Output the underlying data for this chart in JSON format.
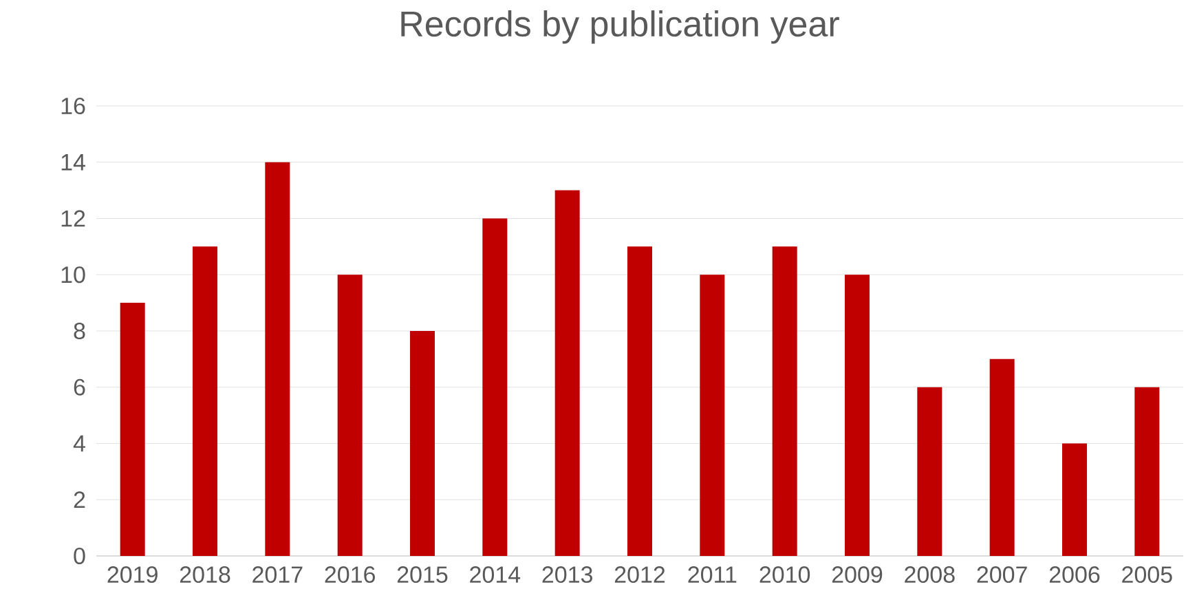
{
  "chart_data": {
    "type": "bar",
    "title": "Records by publication year",
    "categories": [
      "2019",
      "2018",
      "2017",
      "2016",
      "2015",
      "2014",
      "2013",
      "2012",
      "2011",
      "2010",
      "2009",
      "2008",
      "2007",
      "2006",
      "2005"
    ],
    "values": [
      9,
      11,
      14,
      10,
      8,
      12,
      13,
      11,
      10,
      11,
      10,
      6,
      7,
      4,
      6
    ],
    "color": "#c00000",
    "ylim": [
      0,
      16
    ],
    "yticks": [
      0,
      2,
      4,
      6,
      8,
      10,
      12,
      14,
      16
    ],
    "grid": "y"
  }
}
